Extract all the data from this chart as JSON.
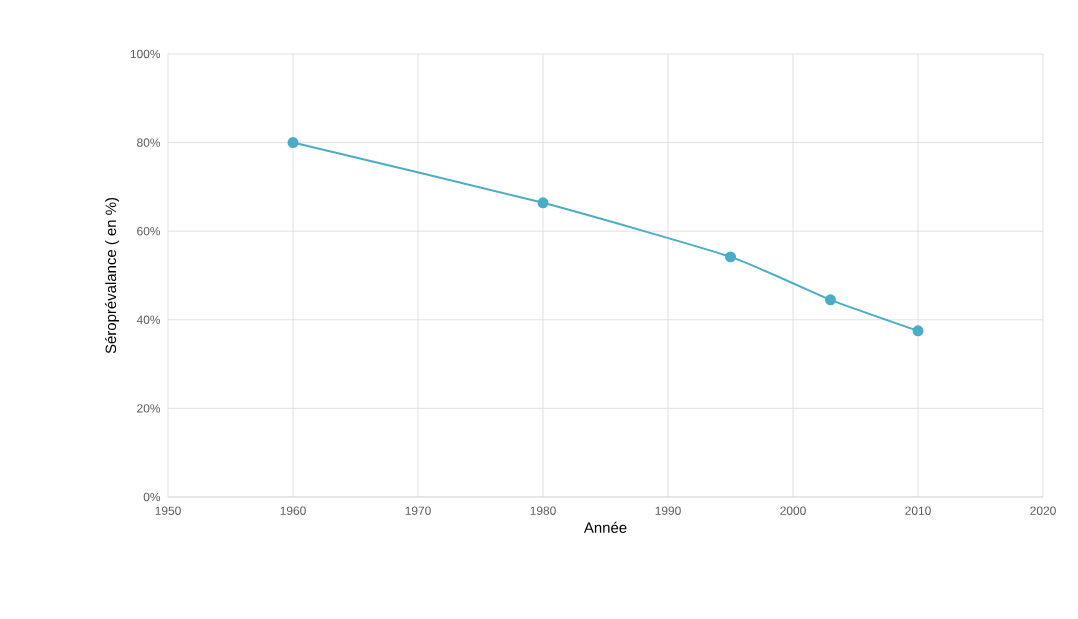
{
  "chart_data": {
    "type": "line",
    "xlabel": "Année",
    "ylabel": "Séroprévalance ( en %)",
    "x": [
      1960,
      1980,
      1995,
      2003,
      2010
    ],
    "values": [
      80,
      66.4,
      54.2,
      44.5,
      37.5
    ],
    "color": "#4bacc6",
    "marker": "circle",
    "grid": true,
    "xlim": [
      1950,
      2020
    ],
    "xticks": [
      1950,
      1960,
      1970,
      1980,
      1990,
      2000,
      2010,
      2020
    ],
    "ylim": [
      0,
      100
    ],
    "yticks": [
      {
        "value": 0,
        "label": "0%"
      },
      {
        "value": 20,
        "label": "20%"
      },
      {
        "value": 40,
        "label": "40%"
      },
      {
        "value": 60,
        "label": "60%"
      },
      {
        "value": 80,
        "label": "80%"
      },
      {
        "value": 100,
        "label": "100%"
      }
    ]
  }
}
